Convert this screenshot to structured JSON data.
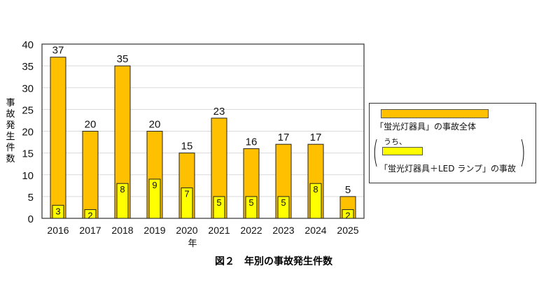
{
  "chart_data": {
    "type": "bar",
    "categories": [
      "2016",
      "2017",
      "2018",
      "2019",
      "2020",
      "2021",
      "2022",
      "2023",
      "2024",
      "2025"
    ],
    "series": [
      {
        "name": "「蛍光灯器具」の事故全体",
        "values": [
          37,
          20,
          35,
          20,
          15,
          23,
          16,
          17,
          17,
          5
        ],
        "color": "#ffc000"
      },
      {
        "name": "「蛍光灯器具＋LED ランプ」の事故",
        "values": [
          3,
          2,
          8,
          9,
          7,
          5,
          5,
          5,
          8,
          2
        ],
        "color": "#ffff00"
      }
    ],
    "title": "図２　年別の事故発生件数",
    "xlabel": "年",
    "ylabel": "事故発生件数",
    "ylim": [
      0,
      40
    ],
    "yticks": [
      0,
      5,
      10,
      15,
      20,
      25,
      30,
      35,
      40
    ],
    "grid": true,
    "legend_position": "right"
  },
  "legend": {
    "item1": "「蛍光灯器具」の事故全体",
    "note": "うち、",
    "item2": "「蛍光灯器具＋LED ランプ」の事故"
  }
}
